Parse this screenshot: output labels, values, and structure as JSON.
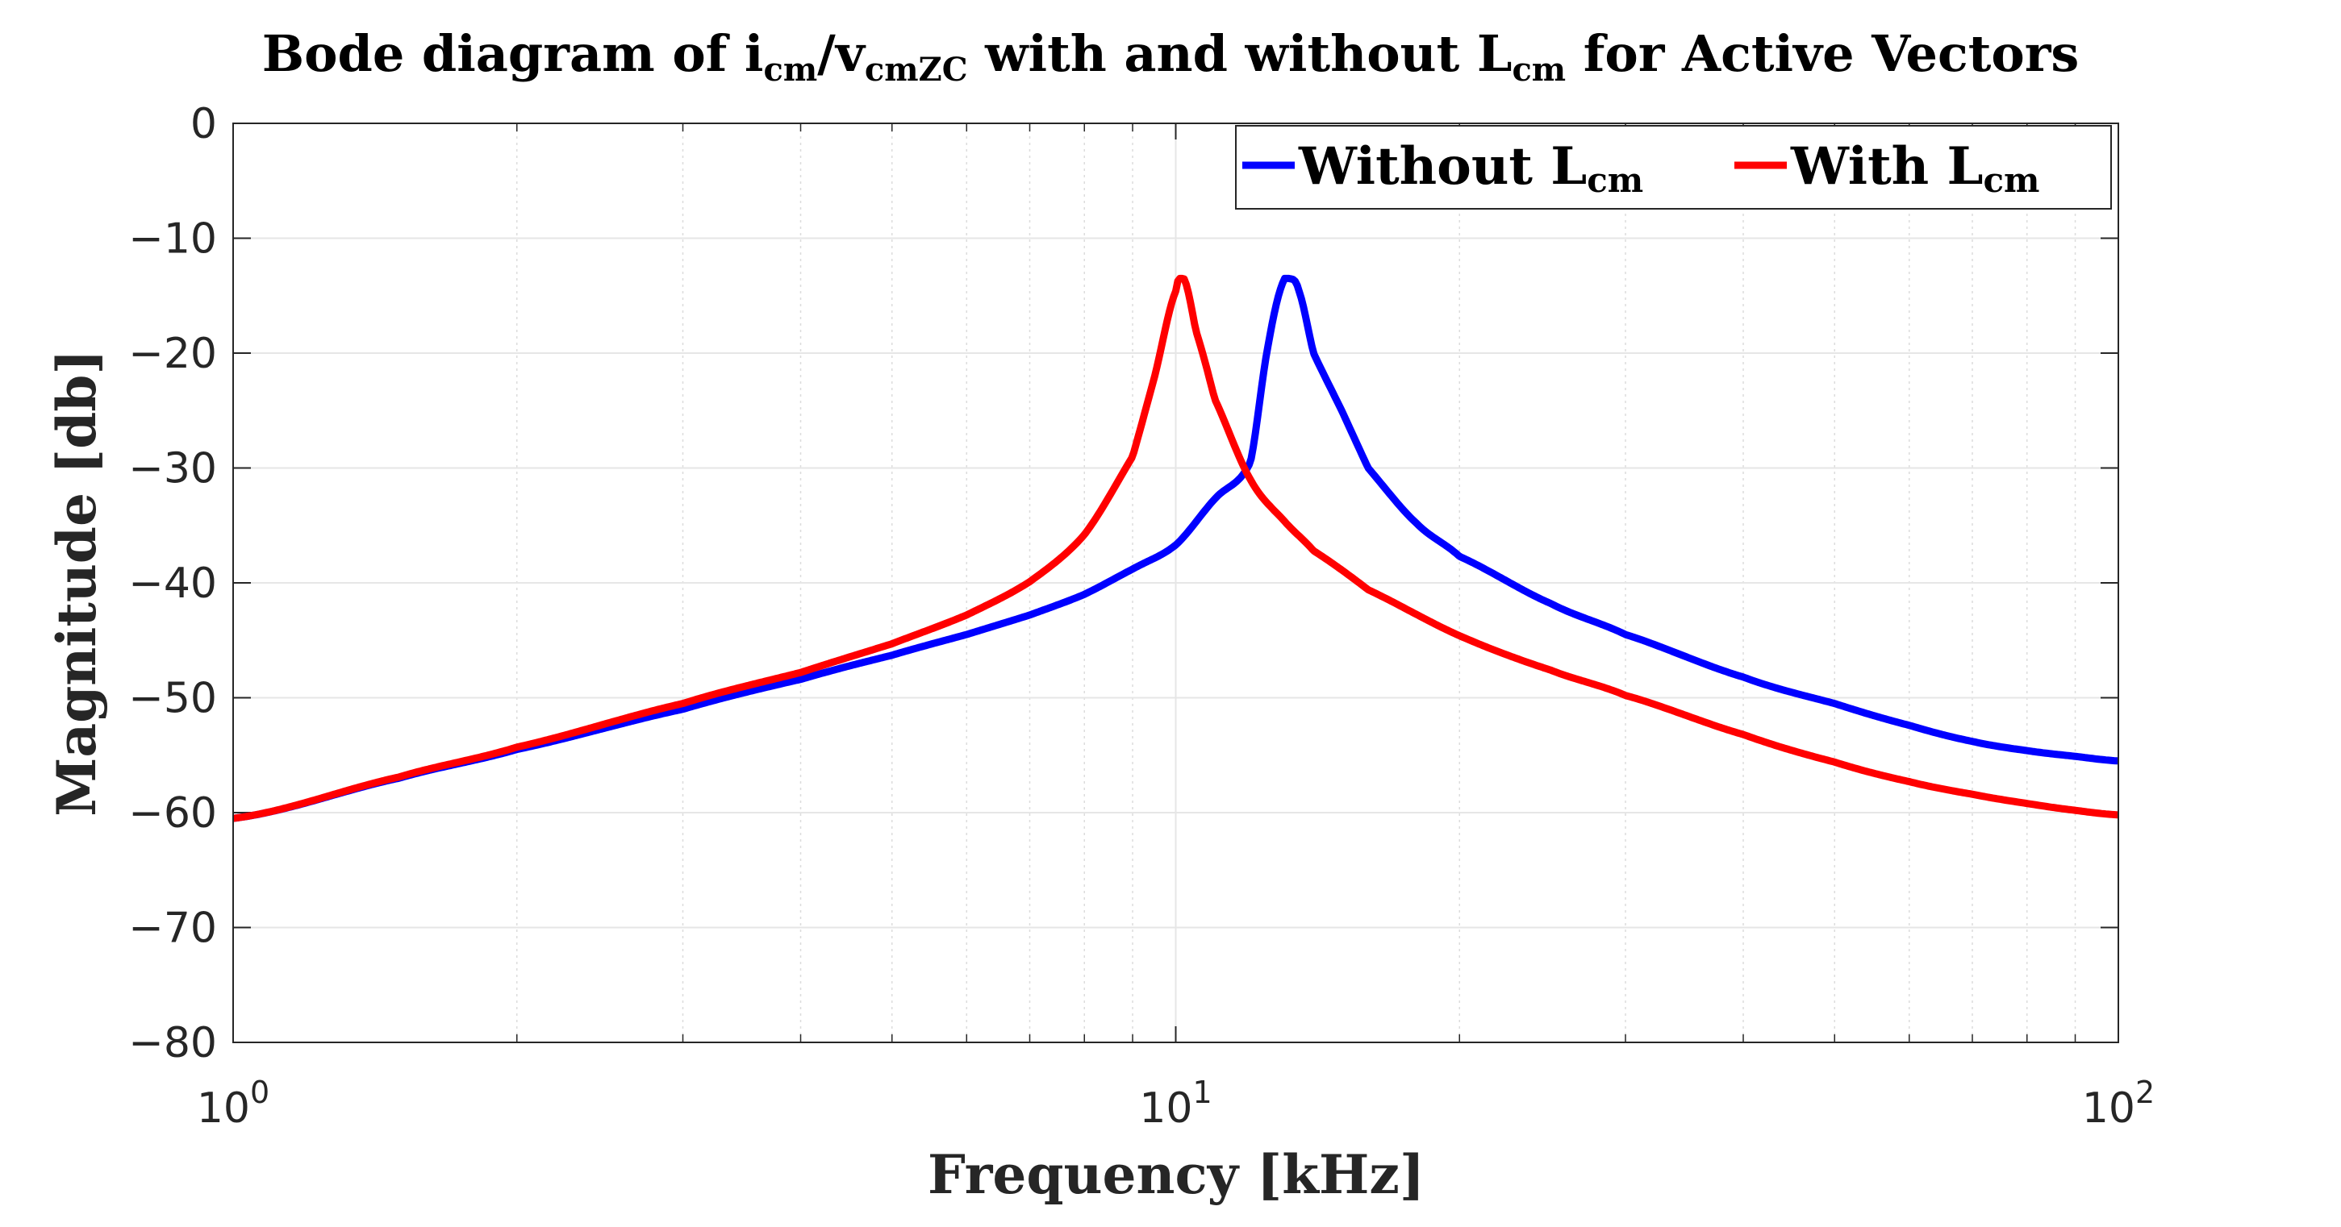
{
  "chart_data": {
    "type": "line",
    "title": {
      "prefix": "Bode diagram of i",
      "sub1": "cm",
      "middle": "/v",
      "sub2": "cmZC",
      "middle2": " with and without L",
      "sub3": "cm",
      "suffix": " for Active Vectors"
    },
    "xlabel": "Frequency [kHz]",
    "ylabel": "Magnitude [db]",
    "xscale": "log",
    "xlim": [
      1,
      100
    ],
    "ylim": [
      -80,
      0
    ],
    "x_ticks": [
      {
        "base": "10",
        "exp": "0"
      },
      {
        "base": "10",
        "exp": "1"
      },
      {
        "base": "10",
        "exp": "2"
      }
    ],
    "y_ticks": [
      "0",
      "-10",
      "-20",
      "-30",
      "-40",
      "-50",
      "-60",
      "-70",
      "-80"
    ],
    "y_tick_values": [
      0,
      -10,
      -20,
      -30,
      -40,
      -50,
      -60,
      -70,
      -80
    ],
    "grid": true,
    "legend_position": "top-right",
    "series": [
      {
        "name": "Without L",
        "name_sub": "cm",
        "color": "#0000ff",
        "resonance_khz": 13.2,
        "peak_db": -13.5,
        "x": [
          1,
          1.5,
          2,
          3,
          4,
          5,
          6,
          7,
          8,
          9,
          10,
          11,
          12,
          12.5,
          13,
          13.2,
          13.5,
          14,
          15,
          16,
          18,
          20,
          25,
          30,
          40,
          50,
          60,
          70,
          80,
          90,
          100
        ],
        "y": [
          -60.5,
          -57.0,
          -54.5,
          -51.0,
          -48.4,
          -46.3,
          -44.5,
          -42.8,
          -41.0,
          -38.8,
          -36.7,
          -32.7,
          -29.5,
          -19.8,
          -13.8,
          -13.5,
          -14.5,
          -20.0,
          -25.0,
          -30.0,
          -34.8,
          -37.7,
          -41.8,
          -44.5,
          -48.2,
          -50.5,
          -52.4,
          -53.8,
          -54.6,
          -55.1,
          -55.5
        ]
      },
      {
        "name": "With L",
        "name_sub": "cm",
        "color": "#ff0000",
        "resonance_khz": 10.2,
        "peak_db": -13.5,
        "x": [
          1,
          1.5,
          2,
          3,
          4,
          5,
          6,
          7,
          8,
          9,
          9.5,
          10,
          10.2,
          10.5,
          11,
          12,
          13,
          14,
          16,
          20,
          25,
          30,
          40,
          50,
          60,
          70,
          80,
          90,
          100
        ],
        "y": [
          -60.5,
          -56.9,
          -54.3,
          -50.5,
          -47.8,
          -45.3,
          -42.8,
          -39.9,
          -35.8,
          -29.0,
          -22.0,
          -14.6,
          -13.5,
          -18.0,
          -24.0,
          -31.0,
          -34.5,
          -37.2,
          -40.6,
          -44.6,
          -47.6,
          -49.8,
          -53.2,
          -55.6,
          -57.3,
          -58.4,
          -59.2,
          -59.8,
          -60.2
        ]
      }
    ]
  }
}
